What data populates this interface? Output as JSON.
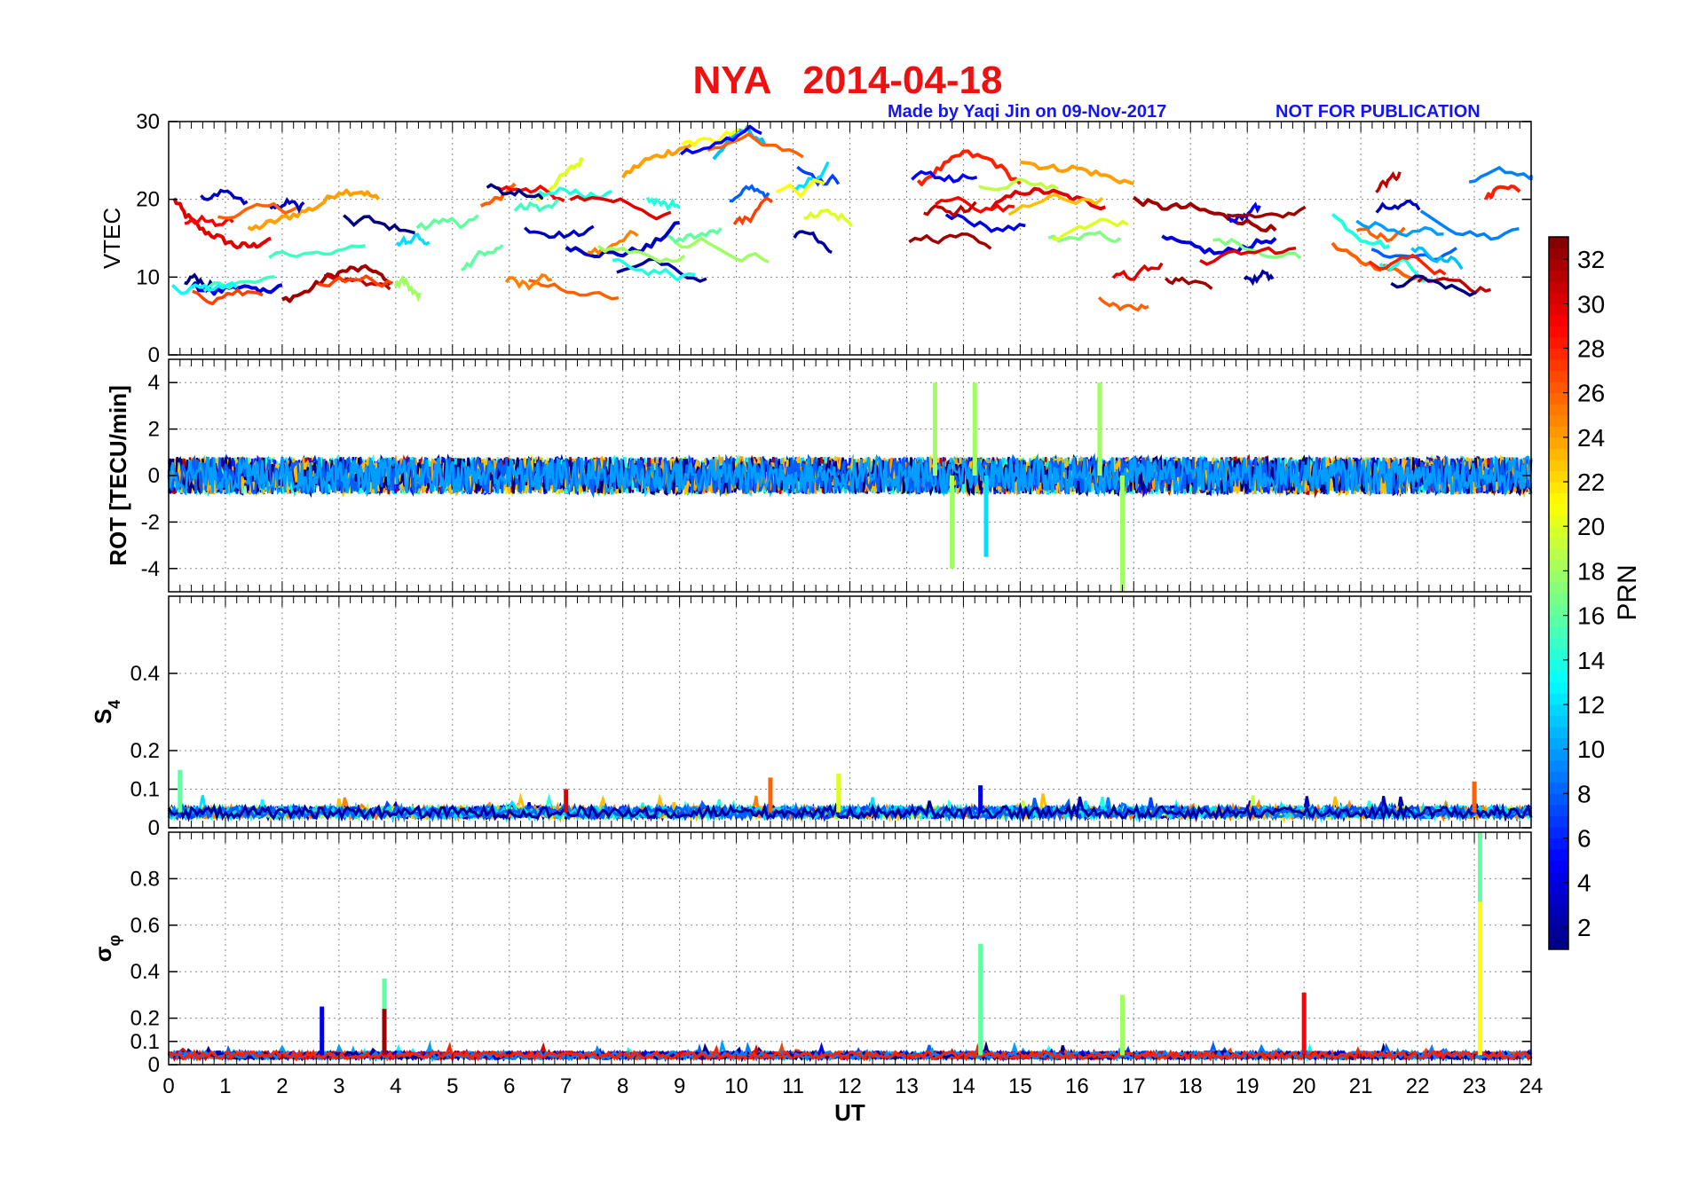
{
  "figure": {
    "title": "NYA   2014-04-18",
    "title_color": "#ee1111",
    "credit": "Made by Yaqi Jin on 09-Nov-2017",
    "notice": "NOT FOR PUBLICATION",
    "note_color": "#1515ee"
  },
  "chart_data": [
    {
      "type": "line",
      "panel": "VTEC",
      "ylabel": "VTEC",
      "ylim": [
        0,
        30
      ],
      "yticks": [
        0,
        10,
        20,
        30
      ],
      "xlim": [
        0,
        24
      ],
      "grid": true,
      "description_of_series": "per-PRN vertical TEC arcs",
      "series": [
        {
          "prn": 30,
          "x": [
            0.1,
            0.3,
            0.6,
            0.9,
            1.2,
            1.5,
            1.8
          ],
          "values": [
            20,
            18,
            16,
            15,
            14,
            14,
            15
          ]
        },
        {
          "prn": 24,
          "x": [
            1.4,
            1.8,
            2.2,
            2.6,
            3.0,
            3.4,
            3.7
          ],
          "values": [
            16,
            17,
            18,
            19,
            21,
            21,
            20
          ]
        },
        {
          "prn": 32,
          "x": [
            2.0,
            2.4,
            2.8,
            3.2,
            3.6,
            3.9
          ],
          "values": [
            7,
            8,
            10,
            11,
            11,
            9
          ]
        },
        {
          "prn": 4,
          "x": [
            0.4,
            0.8,
            1.2,
            1.6,
            2.0
          ],
          "values": [
            9,
            8,
            9,
            8,
            9
          ]
        },
        {
          "prn": 26,
          "x": [
            5.5,
            5.8,
            6.1
          ],
          "values": [
            19,
            20,
            22
          ]
        },
        {
          "prn": 20,
          "x": [
            6.5,
            6.8,
            7.1,
            7.3
          ],
          "values": [
            20,
            22,
            24,
            25
          ]
        },
        {
          "prn": 3,
          "x": [
            7.0,
            7.5,
            8.0,
            8.5,
            9.0
          ],
          "values": [
            14,
            13,
            13,
            14,
            17
          ]
        },
        {
          "prn": 24,
          "x": [
            8.0,
            8.4,
            8.8,
            9.2
          ],
          "values": [
            23,
            25,
            26,
            27
          ]
        },
        {
          "prn": 11,
          "x": [
            9.6,
            9.9,
            10.2,
            10.5
          ],
          "values": [
            25,
            28,
            29,
            27
          ]
        },
        {
          "prn": 28,
          "x": [
            13.2,
            13.6,
            14.0,
            14.5,
            15.0
          ],
          "values": [
            22,
            24,
            26,
            25,
            22
          ]
        },
        {
          "prn": 30,
          "x": [
            14.5,
            15.0,
            15.5,
            16.0,
            16.5
          ],
          "values": [
            19,
            21,
            21,
            20,
            19
          ]
        },
        {
          "prn": 24,
          "x": [
            15.0,
            15.5,
            16.0,
            16.5,
            17.0
          ],
          "values": [
            25,
            24,
            24,
            23,
            22
          ]
        },
        {
          "prn": 32,
          "x": [
            17.0,
            17.5,
            18.0,
            18.5,
            19.0,
            19.5
          ],
          "values": [
            20,
            19,
            19,
            18,
            17,
            16
          ]
        },
        {
          "prn": 4,
          "x": [
            17.5,
            18.0,
            18.5,
            19.0,
            19.5
          ],
          "values": [
            15,
            14,
            13,
            14,
            15
          ]
        },
        {
          "prn": 26,
          "x": [
            20.5,
            21.0,
            21.5,
            22.0
          ],
          "values": [
            14,
            12,
            11,
            10
          ]
        },
        {
          "prn": 14,
          "x": [
            20.5,
            21.0,
            21.5
          ],
          "values": [
            18,
            15,
            14
          ]
        },
        {
          "prn": 28,
          "x": [
            23.2,
            23.5,
            23.8
          ],
          "values": [
            20,
            22,
            21
          ]
        }
      ]
    },
    {
      "type": "line",
      "panel": "ROT",
      "ylabel": "ROT [TECU/min]",
      "ylim": [
        -5,
        5
      ],
      "yticks": [
        -4,
        -2,
        0,
        2,
        4
      ],
      "xlim": [
        0,
        24
      ],
      "grid": true,
      "peaks": [
        {
          "prn": 18,
          "x": 13.5,
          "value": 4.0
        },
        {
          "prn": 18,
          "x": 13.8,
          "value": -4.0
        },
        {
          "prn": 18,
          "x": 14.2,
          "value": 4.0
        },
        {
          "prn": 18,
          "x": 16.4,
          "value": 4.0
        },
        {
          "prn": 18,
          "x": 16.8,
          "value": -5.0
        },
        {
          "prn": 12,
          "x": 14.4,
          "value": -3.5
        }
      ]
    },
    {
      "type": "line",
      "panel": "S4",
      "ylabel": "S4",
      "ylabel_main": "S",
      "ylabel_sub": "4",
      "ylim": [
        0,
        0.6
      ],
      "yticks": [
        0,
        0.1,
        0.2,
        0.4
      ],
      "xlim": [
        0,
        24
      ],
      "grid": true,
      "peaks": [
        {
          "prn": 16,
          "x": 0.2,
          "value": 0.15
        },
        {
          "prn": 26,
          "x": 10.6,
          "value": 0.13
        },
        {
          "prn": 20,
          "x": 11.8,
          "value": 0.14
        },
        {
          "prn": 4,
          "x": 14.3,
          "value": 0.11
        },
        {
          "prn": 30,
          "x": 7.0,
          "value": 0.1
        },
        {
          "prn": 26,
          "x": 23.0,
          "value": 0.12
        }
      ]
    },
    {
      "type": "line",
      "panel": "sigma_phi",
      "ylabel": "σφ",
      "ylabel_main": "σ",
      "ylabel_sub": "φ",
      "ylim": [
        0,
        1
      ],
      "yticks": [
        0,
        0.1,
        0.2,
        0.4,
        0.6,
        0.8
      ],
      "xlim": [
        0,
        24
      ],
      "xlabel": "UT",
      "xticks": [
        0,
        1,
        2,
        3,
        4,
        5,
        6,
        7,
        8,
        9,
        10,
        11,
        12,
        13,
        14,
        15,
        16,
        17,
        18,
        19,
        20,
        21,
        22,
        23,
        24
      ],
      "grid": true,
      "peaks": [
        {
          "prn": 16,
          "x": 23.1,
          "value": 1.0
        },
        {
          "prn": 21,
          "x": 23.1,
          "value": 0.7
        },
        {
          "prn": 16,
          "x": 14.3,
          "value": 0.52
        },
        {
          "prn": 16,
          "x": 3.8,
          "value": 0.37
        },
        {
          "prn": 18,
          "x": 16.8,
          "value": 0.3
        },
        {
          "prn": 29,
          "x": 20.0,
          "value": 0.31
        },
        {
          "prn": 4,
          "x": 2.7,
          "value": 0.25
        },
        {
          "prn": 32,
          "x": 3.8,
          "value": 0.24
        }
      ]
    }
  ],
  "colorbar": {
    "label": "PRN",
    "range": [
      1,
      33
    ],
    "ticks": [
      2,
      4,
      6,
      8,
      10,
      12,
      14,
      16,
      18,
      20,
      22,
      24,
      26,
      28,
      30,
      32
    ],
    "colormap": "jet"
  }
}
